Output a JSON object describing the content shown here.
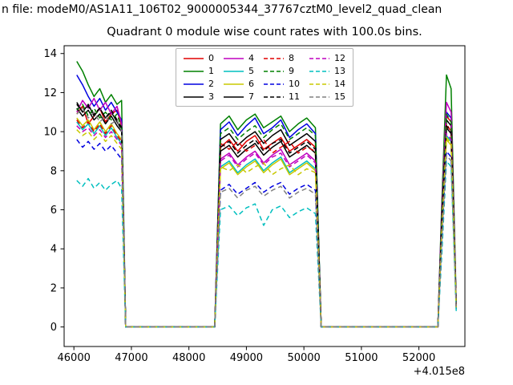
{
  "header": {
    "file_label": "n file: modeM0/AS1A11_106T02_9000005344_37767cztM0_level2_quad_clean"
  },
  "chart_data": {
    "type": "line",
    "title": "Quadrant 0 module wise count rates with 100.0s bins.",
    "xlabel": "",
    "ylabel": "",
    "x_offset_label": "+4.015e8",
    "xlim": [
      45830,
      52800
    ],
    "ylim": [
      -1,
      14.4
    ],
    "x_ticks": [
      46000,
      47000,
      48000,
      49000,
      50000,
      51000,
      52000
    ],
    "y_ticks": [
      0,
      2,
      4,
      6,
      8,
      10,
      12,
      14
    ],
    "grid": false,
    "legend_position": "upper center",
    "legend_columns": 4,
    "x": [
      46050,
      46150,
      46250,
      46350,
      46450,
      46550,
      46650,
      46750,
      46830,
      46900,
      47000,
      47600,
      48300,
      48450,
      48550,
      48700,
      48850,
      49000,
      49150,
      49300,
      49450,
      49600,
      49750,
      49900,
      50050,
      50200,
      50300,
      50800,
      52200,
      52330,
      52400,
      52480,
      52560,
      52650
    ],
    "series": [
      {
        "name": "0",
        "color": "#e00000",
        "dash": "solid",
        "values": [
          10.9,
          11.3,
          10.4,
          10.8,
          11.2,
          10.5,
          10.9,
          11.1,
          10.3,
          0,
          0,
          0,
          0,
          0,
          9.2,
          9.6,
          9.0,
          9.5,
          9.8,
          9.1,
          9.4,
          9.7,
          9.0,
          9.3,
          9.6,
          9.2,
          0,
          0,
          0,
          0,
          5.5,
          10.8,
          10.5,
          1.1
        ]
      },
      {
        "name": "1",
        "color": "#008000",
        "dash": "solid",
        "values": [
          13.6,
          13.1,
          12.4,
          11.8,
          12.2,
          11.5,
          11.9,
          11.4,
          11.6,
          0,
          0,
          0,
          0,
          0,
          10.4,
          10.8,
          10.1,
          10.6,
          10.9,
          10.2,
          10.5,
          10.8,
          10.0,
          10.4,
          10.7,
          10.2,
          0,
          0,
          0,
          0,
          6.5,
          12.9,
          12.2,
          1.2
        ]
      },
      {
        "name": "2",
        "color": "#0000e0",
        "dash": "solid",
        "values": [
          12.9,
          12.4,
          11.8,
          11.3,
          11.7,
          11.1,
          11.5,
          11.0,
          10.6,
          0,
          0,
          0,
          0,
          0,
          10.1,
          10.5,
          9.8,
          10.3,
          10.7,
          9.9,
          10.2,
          10.6,
          9.7,
          10.1,
          10.4,
          9.9,
          0,
          0,
          0,
          0,
          6.0,
          11.0,
          10.7,
          1.1
        ]
      },
      {
        "name": "3",
        "color": "#000000",
        "dash": "solid",
        "values": [
          11.5,
          11.0,
          11.4,
          10.8,
          11.2,
          10.7,
          11.0,
          10.5,
          10.1,
          0,
          0,
          0,
          0,
          0,
          9.6,
          9.9,
          9.3,
          9.7,
          10.0,
          9.4,
          9.8,
          10.1,
          9.3,
          9.6,
          9.9,
          9.5,
          0,
          0,
          0,
          0,
          5.8,
          10.6,
          10.3,
          1.1
        ]
      },
      {
        "name": "4",
        "color": "#bf00bf",
        "dash": "solid",
        "values": [
          11.0,
          11.6,
          11.2,
          11.7,
          11.1,
          11.5,
          10.9,
          11.3,
          10.4,
          0,
          0,
          0,
          0,
          0,
          8.6,
          8.9,
          8.3,
          8.7,
          9.0,
          8.4,
          8.8,
          9.1,
          8.3,
          8.6,
          8.9,
          8.5,
          0,
          0,
          0,
          0,
          6.2,
          11.5,
          11.0,
          1.1
        ]
      },
      {
        "name": "5",
        "color": "#00bfbf",
        "dash": "solid",
        "values": [
          10.5,
          10.1,
          10.4,
          9.9,
          10.3,
          9.8,
          10.2,
          9.7,
          9.4,
          0,
          0,
          0,
          0,
          0,
          8.2,
          8.5,
          7.9,
          8.3,
          8.6,
          8.0,
          8.4,
          8.7,
          7.9,
          8.2,
          8.5,
          8.1,
          0,
          0,
          0,
          0,
          5.2,
          9.8,
          9.5,
          1.0
        ]
      },
      {
        "name": "6",
        "color": "#c8c800",
        "dash": "solid",
        "values": [
          10.7,
          10.3,
          10.6,
          10.1,
          10.5,
          10.0,
          10.4,
          9.9,
          9.6,
          0,
          0,
          0,
          0,
          0,
          8.1,
          8.4,
          7.8,
          8.2,
          8.5,
          7.9,
          8.3,
          8.6,
          7.8,
          8.1,
          8.4,
          8.0,
          0,
          0,
          0,
          0,
          5.3,
          9.6,
          9.3,
          1.0
        ]
      },
      {
        "name": "7",
        "color": "#000000",
        "dash": "solid",
        "values": [
          11.2,
          10.8,
          11.1,
          10.6,
          10.9,
          10.4,
          10.8,
          10.3,
          10.0,
          0,
          0,
          0,
          0,
          0,
          9.0,
          9.3,
          8.7,
          9.1,
          9.4,
          8.8,
          9.2,
          9.5,
          8.7,
          9.0,
          9.3,
          8.9,
          0,
          0,
          0,
          0,
          5.6,
          10.2,
          9.9,
          1.1
        ]
      },
      {
        "name": "8",
        "color": "#e00000",
        "dash": "dashed",
        "values": [
          10.6,
          10.2,
          10.5,
          10.0,
          10.4,
          9.9,
          10.3,
          9.8,
          9.5,
          0,
          0,
          0,
          0,
          0,
          9.4,
          9.1,
          9.5,
          9.0,
          9.3,
          9.6,
          8.9,
          9.2,
          9.5,
          8.9,
          9.2,
          9.0,
          0,
          0,
          0,
          0,
          5.4,
          10.4,
          10.0,
          1.1
        ]
      },
      {
        "name": "9",
        "color": "#008000",
        "dash": "dashed",
        "values": [
          11.1,
          11.4,
          10.8,
          11.2,
          10.7,
          11.0,
          10.6,
          10.9,
          10.2,
          0,
          0,
          0,
          0,
          0,
          9.9,
          10.2,
          9.6,
          10.0,
          10.3,
          9.7,
          10.1,
          10.4,
          9.6,
          9.9,
          10.2,
          9.8,
          0,
          0,
          0,
          0,
          5.9,
          10.9,
          10.5,
          1.1
        ]
      },
      {
        "name": "10",
        "color": "#0000e0",
        "dash": "dashed",
        "values": [
          9.6,
          9.2,
          9.5,
          9.1,
          9.4,
          9.0,
          9.3,
          8.9,
          8.6,
          0,
          0,
          0,
          0,
          0,
          7.0,
          7.3,
          6.8,
          7.1,
          7.4,
          6.9,
          7.2,
          7.4,
          6.8,
          7.1,
          7.3,
          7.0,
          0,
          0,
          0,
          0,
          4.5,
          9.0,
          8.7,
          0.9
        ]
      },
      {
        "name": "11",
        "color": "#000000",
        "dash": "dashed",
        "values": [
          11.4,
          11.0,
          11.3,
          10.9,
          11.2,
          10.7,
          11.1,
          10.6,
          10.2,
          0,
          0,
          0,
          0,
          0,
          9.2,
          9.5,
          8.9,
          9.3,
          9.6,
          9.0,
          9.4,
          9.6,
          8.9,
          9.2,
          9.5,
          9.1,
          0,
          0,
          0,
          0,
          5.7,
          10.3,
          10.0,
          1.1
        ]
      },
      {
        "name": "12",
        "color": "#bf00bf",
        "dash": "dashed",
        "values": [
          10.3,
          10.0,
          10.2,
          9.8,
          10.1,
          9.7,
          10.0,
          9.6,
          9.3,
          0,
          0,
          0,
          0,
          0,
          8.5,
          8.8,
          8.2,
          8.6,
          8.9,
          8.3,
          8.7,
          8.9,
          8.2,
          8.5,
          8.8,
          8.4,
          0,
          0,
          0,
          0,
          5.1,
          9.9,
          9.6,
          1.0
        ]
      },
      {
        "name": "13",
        "color": "#00bfbf",
        "dash": "dashed",
        "values": [
          7.5,
          7.2,
          7.6,
          7.1,
          7.4,
          7.0,
          7.3,
          7.5,
          7.1,
          0,
          0,
          0,
          0,
          0,
          6.0,
          6.2,
          5.7,
          6.1,
          6.3,
          5.2,
          6.0,
          6.2,
          5.6,
          5.9,
          6.1,
          5.8,
          0,
          0,
          0,
          0,
          3.8,
          8.5,
          8.2,
          0.8
        ]
      },
      {
        "name": "14",
        "color": "#c8c800",
        "dash": "dashed",
        "values": [
          10.1,
          9.8,
          10.0,
          9.6,
          9.9,
          9.5,
          9.8,
          9.4,
          9.1,
          0,
          0,
          0,
          0,
          0,
          8.2,
          8.0,
          8.3,
          7.9,
          8.2,
          8.4,
          7.8,
          8.1,
          8.3,
          7.8,
          8.1,
          7.9,
          0,
          0,
          0,
          0,
          5.0,
          9.7,
          9.4,
          1.0
        ]
      },
      {
        "name": "15",
        "color": "#808080",
        "dash": "dashed",
        "values": [
          10.9,
          11.2,
          10.7,
          11.0,
          10.5,
          10.8,
          10.4,
          10.6,
          10.0,
          0,
          0,
          0,
          0,
          0,
          6.9,
          7.1,
          6.6,
          7.0,
          7.2,
          6.7,
          7.0,
          7.2,
          6.6,
          6.9,
          7.1,
          6.8,
          0,
          0,
          0,
          0,
          4.4,
          8.8,
          8.5,
          0.9
        ]
      }
    ]
  }
}
